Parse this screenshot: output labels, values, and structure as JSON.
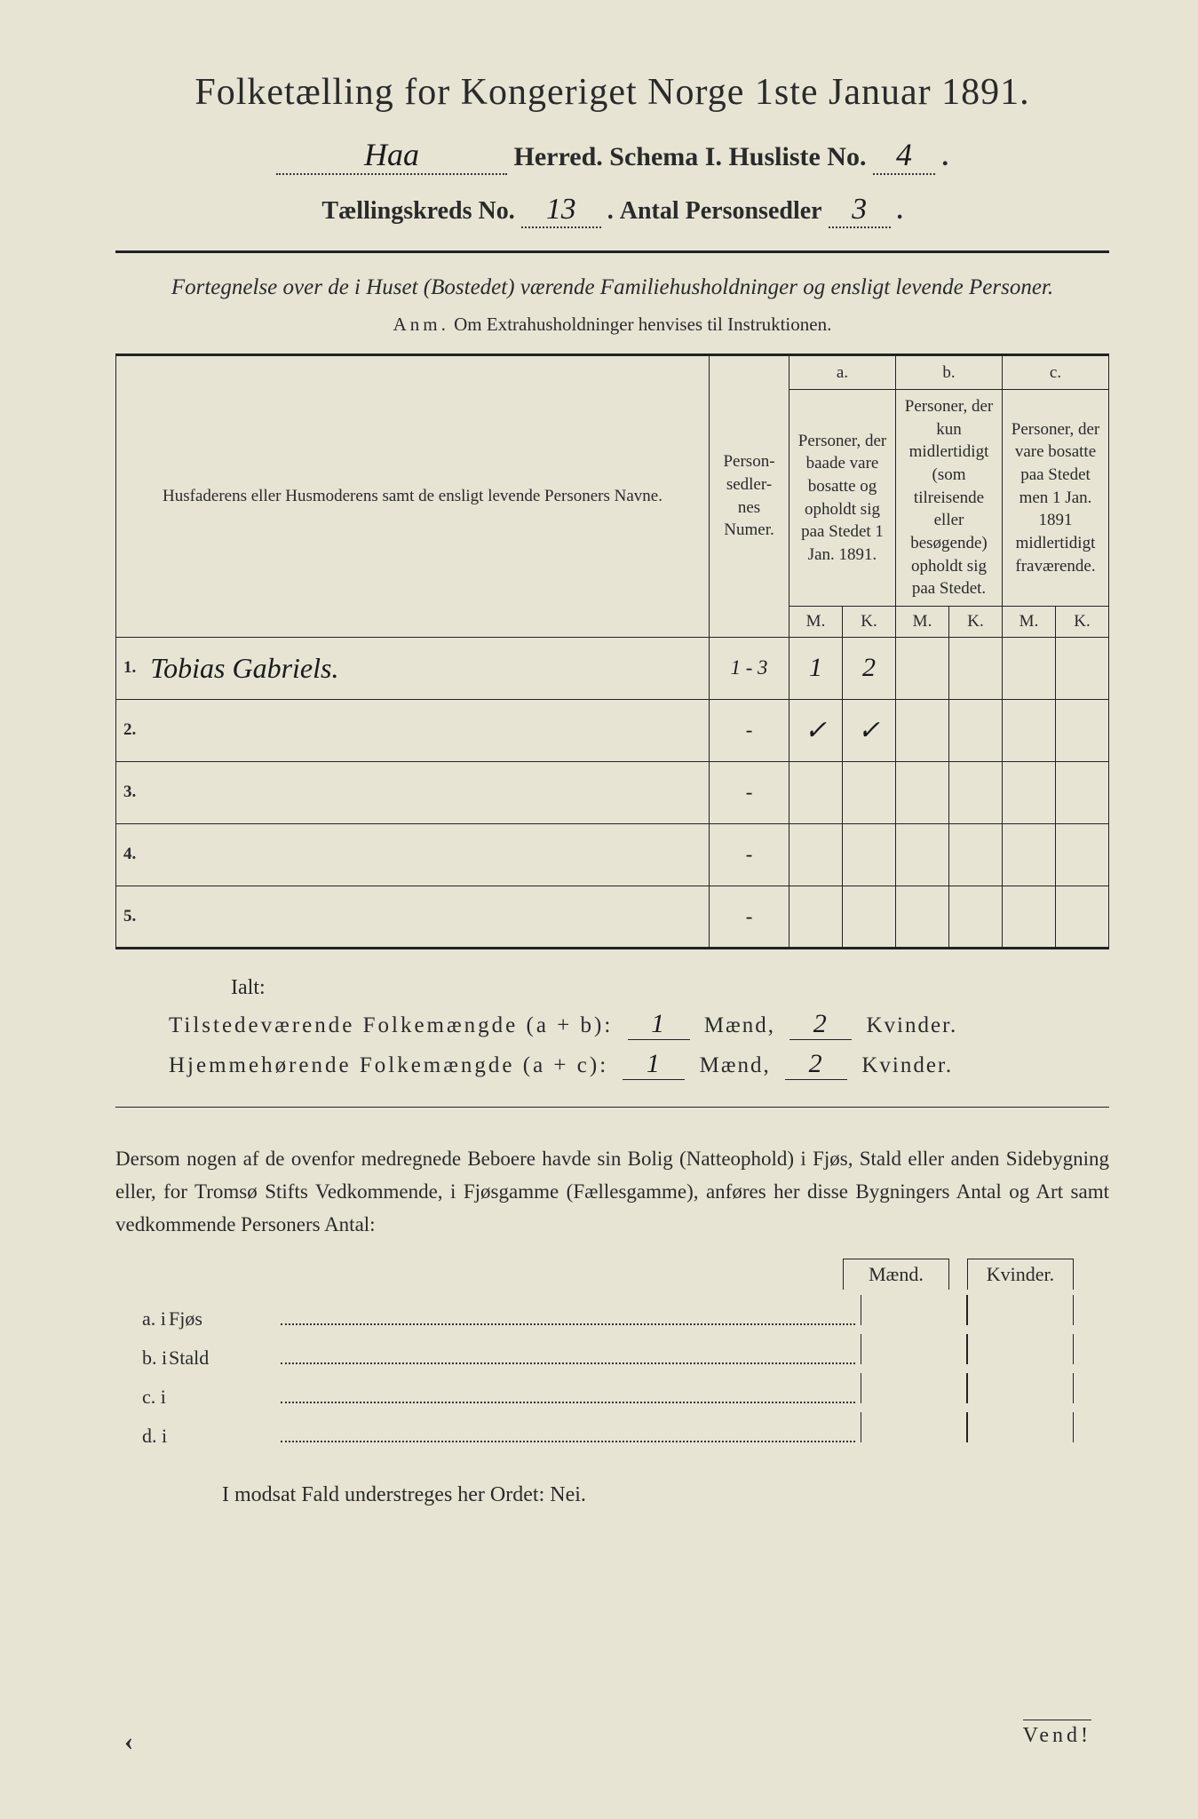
{
  "title": "Folketælling for Kongeriget Norge 1ste Januar 1891.",
  "header": {
    "herred_value": "Haa",
    "herred_label": "Herred.",
    "schema_label": "Schema I.",
    "husliste_label": "Husliste No.",
    "husliste_value": "4",
    "kreds_label": "Tællingskreds No.",
    "kreds_value": "13",
    "antal_label": "Antal Personsedler",
    "antal_value": "3"
  },
  "subtitle": "Fortegnelse over de i Huset (Bostedet) værende Familiehusholdninger og ensligt levende Personer.",
  "anm_label": "Anm.",
  "anm_text": "Om Extrahusholdninger henvises til Instruktionen.",
  "columns": {
    "name": "Husfaderens eller Husmoderens samt de ensligt levende Personers Navne.",
    "numer": "Person-sedler-nes Numer.",
    "a_label": "a.",
    "a_text": "Personer, der baade vare bosatte og opholdt sig paa Stedet 1 Jan. 1891.",
    "b_label": "b.",
    "b_text": "Personer, der kun midlertidigt (som tilreisende eller besøgende) opholdt sig paa Stedet.",
    "c_label": "c.",
    "c_text": "Personer, der vare bosatte paa Stedet men 1 Jan. 1891 midlertidigt fraværende.",
    "m": "M.",
    "k": "K."
  },
  "rows": [
    {
      "n": "1.",
      "name": "Tobias Gabriels.",
      "numer": "1 - 3",
      "am": "1",
      "ak": "2"
    },
    {
      "n": "2.",
      "name": "",
      "numer": "-",
      "am": "✓",
      "ak": "✓"
    },
    {
      "n": "3.",
      "name": "",
      "numer": "-",
      "am": "",
      "ak": ""
    },
    {
      "n": "4.",
      "name": "",
      "numer": "-",
      "am": "",
      "ak": ""
    },
    {
      "n": "5.",
      "name": "",
      "numer": "-",
      "am": "",
      "ak": ""
    }
  ],
  "ialt": "Ialt:",
  "sum1": {
    "label": "Tilstedeværende Folkemængde (a + b):",
    "m": "1",
    "mlabel": "Mænd,",
    "k": "2",
    "klabel": "Kvinder."
  },
  "sum2": {
    "label": "Hjemmehørende Folkemængde (a + c):",
    "m": "1",
    "mlabel": "Mænd,",
    "k": "2",
    "klabel": "Kvinder."
  },
  "para": "Dersom nogen af de ovenfor medregnede Beboere havde sin Bolig (Natteophold) i Fjøs, Stald eller anden Sidebygning eller, for Tromsø Stifts Vedkommende, i Fjøsgamme (Fællesgamme), anføres her disse Bygningers Antal og Art samt vedkommende Personers Antal:",
  "mkheader": {
    "m": "Mænd.",
    "k": "Kvinder."
  },
  "sides": [
    {
      "lbl": "a.  i",
      "word": "Fjøs"
    },
    {
      "lbl": "b.  i",
      "word": "Stald"
    },
    {
      "lbl": "c.  i",
      "word": ""
    },
    {
      "lbl": "d.  i",
      "word": ""
    }
  ],
  "modsat": "I modsat Fald understreges her Ordet: Nei.",
  "vend": "Vend!",
  "colors": {
    "paper": "#e8e4d4",
    "ink": "#2a2a2a",
    "hand": "#1a1a1a"
  }
}
